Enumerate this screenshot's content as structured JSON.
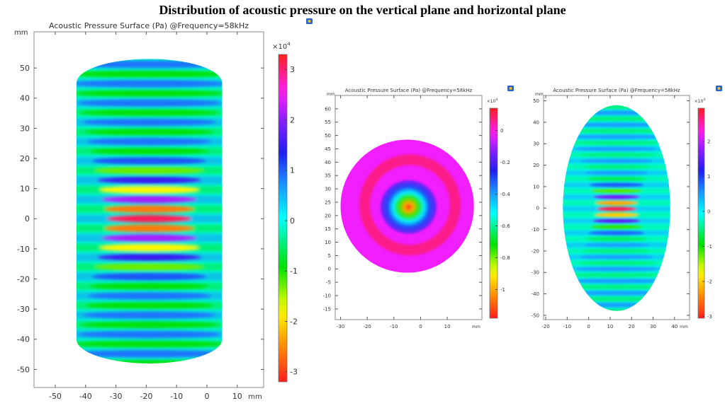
{
  "figure_title": "Distribution of acoustic pressure on the vertical plane and horizontal plane",
  "chart_data": [
    {
      "type": "heatmap",
      "title": "Acoustic Pressure Surface (Pa)  @Frequency=58kHz",
      "unit_label": "mm",
      "shape": "cylinder",
      "xlim": [
        -57,
        18.7
      ],
      "ylim": [
        -56,
        62
      ],
      "xticks": [
        -50,
        -40,
        -30,
        -20,
        -10,
        0,
        10
      ],
      "yticks": [
        50,
        40,
        30,
        20,
        10,
        0,
        -10,
        -20,
        -30,
        -40,
        -50
      ],
      "domain_x": [
        -43,
        5
      ],
      "domain_y": [
        -48,
        53
      ],
      "colorbar": {
        "multiplier": "×10",
        "exponent": "4",
        "range": [
          -3.2,
          3.3
        ],
        "ticks": [
          3,
          2,
          1,
          0,
          -1,
          -2,
          -3
        ]
      }
    },
    {
      "type": "heatmap",
      "title": "Acoustic Pressure Surface (Pa)  @Frequency=58kHz",
      "unit_label": "mm",
      "shape": "circle",
      "xlim": [
        -32,
        23
      ],
      "ylim": [
        -19,
        65
      ],
      "xticks": [
        -30,
        -20,
        -10,
        0,
        10
      ],
      "yticks": [
        60,
        55,
        50,
        45,
        40,
        35,
        30,
        25,
        20,
        15,
        10,
        5,
        0,
        -5,
        -10,
        -15
      ],
      "domain_center": [
        -5,
        23.5
      ],
      "domain_radius": 25,
      "colorbar": {
        "multiplier": "×10",
        "exponent": "4",
        "range": [
          -1.18,
          0.14
        ],
        "ticks": [
          0,
          -0.2,
          -0.4,
          -0.6,
          -0.8,
          -1
        ]
      }
    },
    {
      "type": "heatmap",
      "title": "Acoustic Pressure Surface (Pa)  @Frequency=58kHz",
      "unit_label": "mm",
      "shape": "ellipse",
      "xlim": [
        -21,
        47
      ],
      "ylim": [
        -52,
        52.5
      ],
      "xticks": [
        -20,
        -10,
        0,
        10,
        20,
        30,
        40
      ],
      "yticks": [
        50,
        40,
        30,
        20,
        10,
        0,
        -10,
        -20,
        -30,
        -40,
        -50
      ],
      "domain_center": [
        13,
        0
      ],
      "domain_radii": [
        25,
        48
      ],
      "colorbar": {
        "multiplier": "×10",
        "exponent": "4",
        "range": [
          -3.05,
          2.95
        ],
        "ticks": [
          2,
          1,
          0,
          -1,
          -2,
          -3
        ]
      }
    }
  ]
}
